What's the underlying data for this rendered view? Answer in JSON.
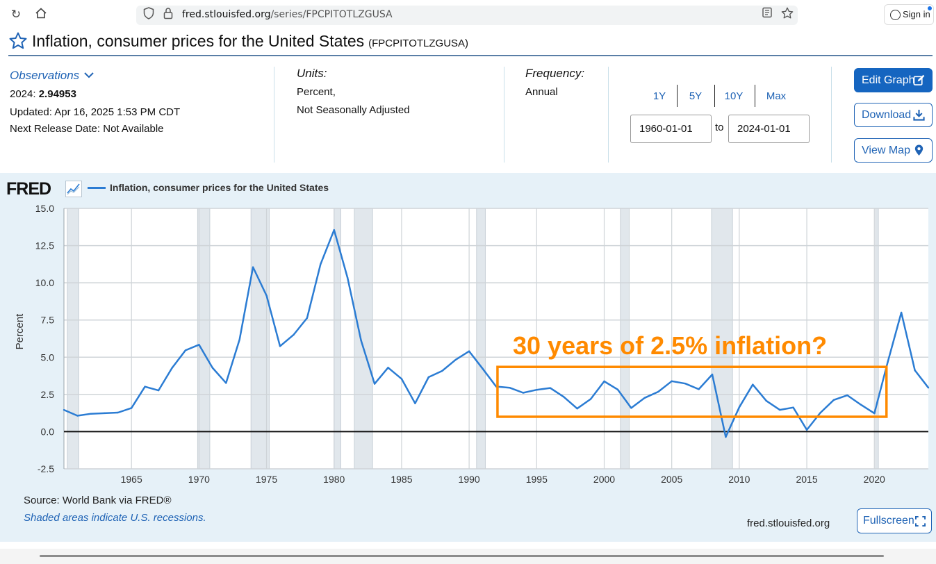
{
  "browser": {
    "url_host": "fred.stlouisfed.org",
    "url_path": "/series/FPCPITOTLZGUSA",
    "signin_label": "Sign in"
  },
  "page": {
    "title": "Inflation, consumer prices for the United States",
    "series_id": "(FPCPITOTLZGUSA)"
  },
  "observations": {
    "label": "Observations",
    "year_label": "2024:",
    "value": "2.94953",
    "updated": "Updated: Apr 16, 2025 1:53 PM CDT",
    "next_release": "Next Release Date: Not Available"
  },
  "units": {
    "heading": "Units:",
    "line1": "Percent,",
    "line2": "Not Seasonally Adjusted"
  },
  "frequency": {
    "heading": "Frequency:",
    "value": "Annual"
  },
  "range": {
    "buttons": [
      "1Y",
      "5Y",
      "10Y",
      "Max"
    ],
    "start": "1960-01-01",
    "to_label": "to",
    "end": "2024-01-01"
  },
  "actions": {
    "edit_graph": "Edit Graph",
    "download": "Download",
    "view_map": "View Map",
    "fullscreen": "Fullscreen"
  },
  "chart_panel": {
    "logo": "FRED",
    "legend_label": "Inflation, consumer prices for the United States",
    "source": "Source: World Bank via FRED®",
    "shaded_note": "Shaded areas indicate U.S. recessions.",
    "site": "fred.stlouisfed.org"
  },
  "colors": {
    "line": "#2b7cd3",
    "recession": "#e1e7ec",
    "annotation": "#ff8a00",
    "link": "#1f63b5",
    "primary_button": "#1565c0"
  },
  "chart_data": {
    "type": "line",
    "title": "",
    "xlabel": "",
    "ylabel": "Percent",
    "xlim": [
      1960,
      2024
    ],
    "ylim": [
      -2.5,
      15.0
    ],
    "yticks": [
      15.0,
      12.5,
      10.0,
      7.5,
      5.0,
      2.5,
      0.0,
      -2.5
    ],
    "ytick_labels": [
      "15.0",
      "12.5",
      "10.0",
      "7.5",
      "5.0",
      "2.5",
      "0.0",
      "-2.5"
    ],
    "xticks": [
      1965,
      1970,
      1975,
      1980,
      1985,
      1990,
      1995,
      2000,
      2005,
      2010,
      2015,
      2020
    ],
    "grid": true,
    "series": [
      {
        "name": "Inflation, consumer prices for the United States",
        "x": [
          1960,
          1961,
          1962,
          1963,
          1964,
          1965,
          1966,
          1967,
          1968,
          1969,
          1970,
          1971,
          1972,
          1973,
          1974,
          1975,
          1976,
          1977,
          1978,
          1979,
          1980,
          1981,
          1982,
          1983,
          1984,
          1985,
          1986,
          1987,
          1988,
          1989,
          1990,
          1991,
          1992,
          1993,
          1994,
          1995,
          1996,
          1997,
          1998,
          1999,
          2000,
          2001,
          2002,
          2003,
          2004,
          2005,
          2006,
          2007,
          2008,
          2009,
          2010,
          2011,
          2012,
          2013,
          2014,
          2015,
          2016,
          2017,
          2018,
          2019,
          2020,
          2021,
          2022,
          2023,
          2024
        ],
        "values": [
          1.46,
          1.07,
          1.2,
          1.24,
          1.28,
          1.59,
          3.02,
          2.77,
          4.27,
          5.46,
          5.84,
          4.29,
          3.27,
          6.18,
          11.05,
          9.14,
          5.74,
          6.5,
          7.63,
          11.25,
          13.55,
          10.33,
          6.13,
          3.21,
          4.3,
          3.55,
          1.9,
          3.66,
          4.08,
          4.83,
          5.4,
          4.23,
          3.03,
          2.95,
          2.61,
          2.81,
          2.93,
          2.34,
          1.55,
          2.19,
          3.38,
          2.83,
          1.59,
          2.27,
          2.68,
          3.39,
          3.23,
          2.85,
          3.84,
          -0.36,
          1.64,
          3.16,
          2.07,
          1.46,
          1.62,
          0.12,
          1.26,
          2.13,
          2.44,
          1.81,
          1.23,
          4.7,
          8.0,
          4.12,
          2.95
        ]
      }
    ],
    "recessions": [
      [
        1960.25,
        1961.1
      ],
      [
        1969.9,
        1970.8
      ],
      [
        1973.85,
        1975.2
      ],
      [
        1980.0,
        1980.5
      ],
      [
        1981.5,
        1982.85
      ],
      [
        1990.55,
        1991.2
      ],
      [
        2001.2,
        2001.85
      ],
      [
        2007.95,
        2009.5
      ],
      [
        2020.1,
        2020.3
      ]
    ],
    "annotation": {
      "text": "30 years of 2.5% inflation?",
      "box_x": [
        1992.1,
        2020.9
      ],
      "box_y": [
        1.0,
        4.35
      ]
    }
  }
}
